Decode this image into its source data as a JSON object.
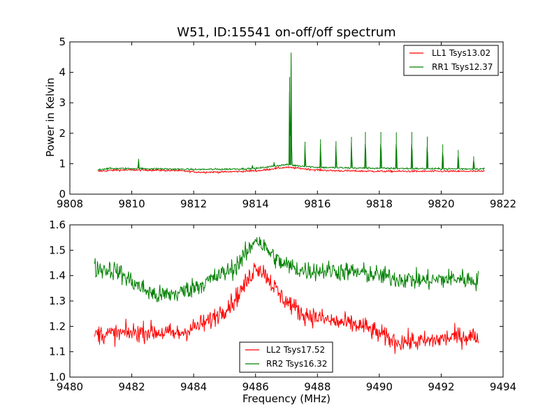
{
  "chart_data": [
    {
      "type": "line",
      "title": "W51, ID:15541 on-off/off spectrum",
      "xlabel": "",
      "ylabel": "Power in Kelvin",
      "xlim": [
        9808,
        9822
      ],
      "ylim": [
        0,
        5
      ],
      "xticks": [
        9808,
        9810,
        9812,
        9814,
        9816,
        9818,
        9820,
        9822
      ],
      "yticks": [
        0,
        1,
        2,
        3,
        4,
        5
      ],
      "legend_position": "top-right",
      "grid": false,
      "series": [
        {
          "name": "LL1 Tsys13.02",
          "color": "#ff0000",
          "x": [
            9808.9,
            9809.5,
            9810.5,
            9811.5,
            9812.2,
            9813.0,
            9813.6,
            9814.2,
            9814.6,
            9815.0,
            9815.4,
            9815.9,
            9816.5,
            9817.2,
            9818.0,
            9819.0,
            9820.0,
            9820.8,
            9821.4
          ],
          "y": [
            0.75,
            0.79,
            0.79,
            0.77,
            0.72,
            0.73,
            0.75,
            0.78,
            0.84,
            0.88,
            0.85,
            0.8,
            0.77,
            0.76,
            0.75,
            0.75,
            0.75,
            0.75,
            0.75
          ],
          "spikes": [],
          "noise": 0.03
        },
        {
          "name": "RR1 Tsys12.37",
          "color": "#008000",
          "x": [
            9808.9,
            9809.2,
            9810.0,
            9811.0,
            9812.0,
            9813.0,
            9814.0,
            9814.6,
            9815.0,
            9815.4,
            9816.0,
            9817.0,
            9818.0,
            9819.0,
            9820.0,
            9820.8,
            9821.4
          ],
          "y": [
            0.8,
            0.84,
            0.84,
            0.83,
            0.81,
            0.82,
            0.84,
            0.92,
            0.97,
            0.93,
            0.88,
            0.86,
            0.85,
            0.84,
            0.83,
            0.83,
            0.83
          ],
          "spikes": [
            [
              9810.22,
              1.16
            ],
            [
              9813.9,
              0.95
            ],
            [
              9814.6,
              1.05
            ],
            [
              9815.1,
              3.85
            ],
            [
              9815.15,
              4.65
            ],
            [
              9815.13,
              2.35
            ],
            [
              9815.6,
              1.72
            ],
            [
              9816.1,
              1.8
            ],
            [
              9816.6,
              1.74
            ],
            [
              9817.1,
              1.88
            ],
            [
              9817.55,
              2.04
            ],
            [
              9818.05,
              2.04
            ],
            [
              9818.55,
              2.03
            ],
            [
              9819.05,
              2.04
            ],
            [
              9819.55,
              1.89
            ],
            [
              9820.05,
              1.63
            ],
            [
              9820.55,
              1.45
            ],
            [
              9821.05,
              1.24
            ]
          ],
          "noise": 0.03
        }
      ]
    },
    {
      "type": "line",
      "title": "",
      "xlabel": "Frequency (MHz)",
      "ylabel": "",
      "xlim": [
        9480,
        9494
      ],
      "ylim": [
        1.0,
        1.6
      ],
      "xticks": [
        9480,
        9482,
        9484,
        9486,
        9488,
        9490,
        9492,
        9494
      ],
      "yticks": [
        1.0,
        1.1,
        1.2,
        1.3,
        1.4,
        1.5,
        1.6
      ],
      "legend_position": "bottom-center",
      "grid": false,
      "series": [
        {
          "name": "LL2 Tsys17.52",
          "color": "#ff0000",
          "x": [
            9480.8,
            9481.5,
            9482.5,
            9483.5,
            9484.5,
            9485.3,
            9485.8,
            9486.0,
            9486.3,
            9486.8,
            9487.5,
            9488.5,
            9489.5,
            9490.0,
            9490.5,
            9491.5,
            9492.5,
            9493.2
          ],
          "y": [
            1.17,
            1.17,
            1.18,
            1.17,
            1.22,
            1.3,
            1.39,
            1.44,
            1.41,
            1.32,
            1.25,
            1.22,
            1.2,
            1.17,
            1.14,
            1.14,
            1.16,
            1.16
          ],
          "spikes": [],
          "noise": 0.04
        },
        {
          "name": "RR2 Tsys16.32",
          "color": "#008000",
          "x": [
            9480.8,
            9481.5,
            9482.2,
            9482.8,
            9483.5,
            9484.5,
            9485.3,
            9485.8,
            9486.0,
            9486.3,
            9486.8,
            9487.5,
            9488.5,
            9489.5,
            9490.5,
            9491.5,
            9492.5,
            9493.2
          ],
          "y": [
            1.43,
            1.42,
            1.36,
            1.32,
            1.33,
            1.38,
            1.43,
            1.5,
            1.55,
            1.51,
            1.45,
            1.42,
            1.42,
            1.41,
            1.39,
            1.38,
            1.39,
            1.38
          ],
          "spikes": [],
          "noise": 0.04
        }
      ]
    }
  ]
}
